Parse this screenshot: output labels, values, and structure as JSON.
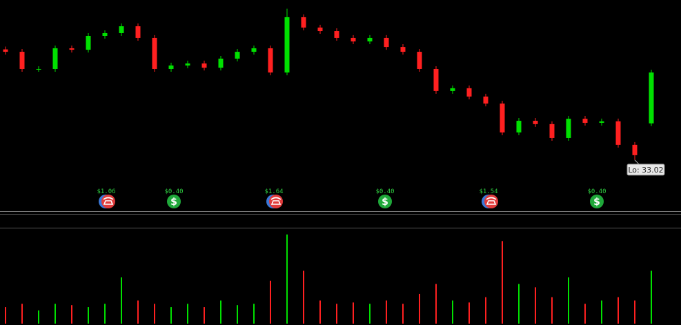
{
  "chart_data": {
    "type": "candlestick",
    "open": [
      39.0,
      38.87,
      37.94,
      37.94,
      39.06,
      38.98,
      39.73,
      39.88,
      40.25,
      39.62,
      37.94,
      38.13,
      38.24,
      38.01,
      38.5,
      38.87,
      39.06,
      37.75,
      40.74,
      40.18,
      39.99,
      39.62,
      39.43,
      39.62,
      39.13,
      38.87,
      37.94,
      36.75,
      36.9,
      36.45,
      36.07,
      34.51,
      35.14,
      34.96,
      34.21,
      35.25,
      35.03,
      35.11,
      33.84,
      35.0
    ],
    "high": [
      39.15,
      39.02,
      38.09,
      39.21,
      39.21,
      39.88,
      40.03,
      40.4,
      40.4,
      39.77,
      38.28,
      38.39,
      38.39,
      38.65,
      39.02,
      39.21,
      39.21,
      41.2,
      40.89,
      40.33,
      40.14,
      39.77,
      39.77,
      39.77,
      39.28,
      39.02,
      38.09,
      37.05,
      37.05,
      36.6,
      36.22,
      35.29,
      35.29,
      35.11,
      35.4,
      35.4,
      35.26,
      35.26,
      33.99,
      37.9
    ],
    "low": [
      38.72,
      37.79,
      37.79,
      37.79,
      38.83,
      38.83,
      39.58,
      39.73,
      39.47,
      37.79,
      37.79,
      37.98,
      37.86,
      37.86,
      38.35,
      38.72,
      37.6,
      37.6,
      40.03,
      39.84,
      39.47,
      39.28,
      39.28,
      38.98,
      38.72,
      37.79,
      36.6,
      36.6,
      36.3,
      35.92,
      34.36,
      34.36,
      34.81,
      34.06,
      34.06,
      34.88,
      34.88,
      33.69,
      33.02,
      34.85
    ],
    "close": [
      38.87,
      37.94,
      37.94,
      39.06,
      38.98,
      39.73,
      39.88,
      40.25,
      39.62,
      37.94,
      38.13,
      38.24,
      38.01,
      38.5,
      38.87,
      39.06,
      37.75,
      40.74,
      40.18,
      39.99,
      39.62,
      39.43,
      39.62,
      39.13,
      38.87,
      37.94,
      36.75,
      36.9,
      36.45,
      36.07,
      34.51,
      35.14,
      34.96,
      34.21,
      35.25,
      35.03,
      35.11,
      33.84,
      33.28,
      37.75
    ],
    "volume": [
      25,
      30,
      20,
      30,
      28,
      25,
      30,
      70,
      35,
      30,
      25,
      30,
      25,
      35,
      28,
      30,
      65,
      135,
      80,
      35,
      30,
      32,
      30,
      35,
      30,
      45,
      60,
      35,
      32,
      40,
      125,
      60,
      55,
      40,
      70,
      30,
      35,
      40,
      35,
      80
    ],
    "ylim": [
      31.97,
      41.67
    ],
    "volume_ylim": [
      0,
      140
    ],
    "up_color": "#00e000",
    "down_color": "#ff2020",
    "low_label": "Lo: 33.02",
    "events": [
      "$1.06",
      "$0.40",
      "$1.64",
      "$0.40",
      "$1.54",
      "$0.40"
    ]
  }
}
